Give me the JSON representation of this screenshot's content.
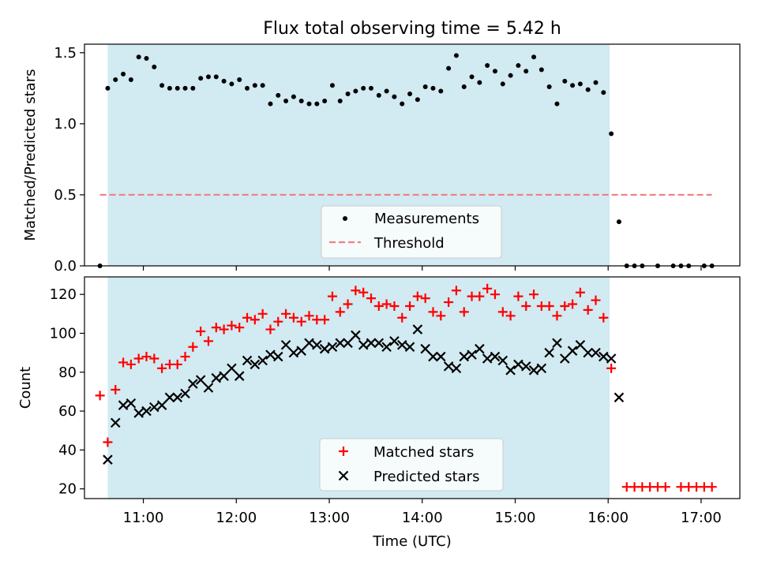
{
  "title": "Flux total observing time = 5.42 h",
  "colors": {
    "shade": "#add8e6",
    "threshold": "#f08080",
    "matched": "#ff0000",
    "predicted": "#000000",
    "measurements": "#000000"
  },
  "chart_data": [
    {
      "type": "scatter",
      "ylabel": "Matched/Predicted stars",
      "xlim": [
        "10:22",
        "17:25"
      ],
      "ylim": [
        0,
        1.56
      ],
      "yticks": [
        "0.0",
        "0.5",
        "1.0",
        "1.5"
      ],
      "x_tick_values": [
        "11:00",
        "12:00",
        "13:00",
        "14:00",
        "15:00",
        "16:00",
        "17:00"
      ],
      "shaded_span": [
        "10:37",
        "16:01"
      ],
      "legend": {
        "position": "lower center",
        "entries": [
          "Measurements",
          "Threshold"
        ]
      },
      "threshold": {
        "name": "Threshold",
        "y": 0.5,
        "x_range": [
          "10:32",
          "17:07"
        ]
      },
      "series": [
        {
          "name": "Measurements",
          "marker": "dot",
          "points": [
            [
              "10:32",
              0.0
            ],
            [
              "10:37",
              1.25
            ],
            [
              "10:42",
              1.31
            ],
            [
              "10:47",
              1.35
            ],
            [
              "10:52",
              1.31
            ],
            [
              "10:57",
              1.47
            ],
            [
              "11:02",
              1.46
            ],
            [
              "11:07",
              1.4
            ],
            [
              "11:12",
              1.27
            ],
            [
              "11:17",
              1.25
            ],
            [
              "11:22",
              1.25
            ],
            [
              "11:27",
              1.25
            ],
            [
              "11:32",
              1.25
            ],
            [
              "11:37",
              1.32
            ],
            [
              "11:42",
              1.33
            ],
            [
              "11:47",
              1.33
            ],
            [
              "11:52",
              1.3
            ],
            [
              "11:57",
              1.28
            ],
            [
              "12:02",
              1.31
            ],
            [
              "12:07",
              1.25
            ],
            [
              "12:12",
              1.27
            ],
            [
              "12:17",
              1.27
            ],
            [
              "12:22",
              1.14
            ],
            [
              "12:27",
              1.2
            ],
            [
              "12:32",
              1.16
            ],
            [
              "12:37",
              1.19
            ],
            [
              "12:42",
              1.16
            ],
            [
              "12:47",
              1.14
            ],
            [
              "12:52",
              1.14
            ],
            [
              "12:57",
              1.16
            ],
            [
              "13:02",
              1.27
            ],
            [
              "13:07",
              1.16
            ],
            [
              "13:12",
              1.21
            ],
            [
              "13:17",
              1.23
            ],
            [
              "13:22",
              1.25
            ],
            [
              "13:27",
              1.25
            ],
            [
              "13:32",
              1.2
            ],
            [
              "13:37",
              1.23
            ],
            [
              "13:42",
              1.19
            ],
            [
              "13:47",
              1.14
            ],
            [
              "13:52",
              1.21
            ],
            [
              "13:57",
              1.17
            ],
            [
              "14:02",
              1.26
            ],
            [
              "14:07",
              1.25
            ],
            [
              "14:12",
              1.23
            ],
            [
              "14:17",
              1.39
            ],
            [
              "14:22",
              1.48
            ],
            [
              "14:27",
              1.26
            ],
            [
              "14:32",
              1.33
            ],
            [
              "14:37",
              1.29
            ],
            [
              "14:42",
              1.41
            ],
            [
              "14:47",
              1.37
            ],
            [
              "14:52",
              1.28
            ],
            [
              "14:57",
              1.34
            ],
            [
              "15:02",
              1.41
            ],
            [
              "15:07",
              1.37
            ],
            [
              "15:12",
              1.47
            ],
            [
              "15:17",
              1.38
            ],
            [
              "15:22",
              1.26
            ],
            [
              "15:27",
              1.14
            ],
            [
              "15:32",
              1.3
            ],
            [
              "15:37",
              1.27
            ],
            [
              "15:42",
              1.28
            ],
            [
              "15:47",
              1.24
            ],
            [
              "15:52",
              1.29
            ],
            [
              "15:57",
              1.22
            ],
            [
              "16:02",
              0.93
            ],
            [
              "16:07",
              0.31
            ],
            [
              "16:12",
              0.0
            ],
            [
              "16:17",
              0.0
            ],
            [
              "16:22",
              0.0
            ],
            [
              "16:32",
              0.0
            ],
            [
              "16:42",
              0.0
            ],
            [
              "16:47",
              0.0
            ],
            [
              "16:52",
              0.0
            ],
            [
              "17:02",
              0.0
            ],
            [
              "17:07",
              0.0
            ]
          ]
        }
      ]
    },
    {
      "type": "scatter",
      "xlabel": "Time (UTC)",
      "ylabel": "Count",
      "xlim": [
        "10:22",
        "17:25"
      ],
      "ylim": [
        15,
        129
      ],
      "yticks": [
        "20",
        "40",
        "60",
        "80",
        "100",
        "120"
      ],
      "xticks": [
        "11:00",
        "12:00",
        "13:00",
        "14:00",
        "15:00",
        "16:00",
        "17:00"
      ],
      "shaded_span": [
        "10:37",
        "16:01"
      ],
      "legend": {
        "position": "lower center",
        "entries": [
          "Matched stars",
          "Predicted stars"
        ]
      },
      "series": [
        {
          "name": "Matched stars",
          "marker": "plus",
          "points": [
            [
              "10:32",
              68
            ],
            [
              "10:37",
              44
            ],
            [
              "10:42",
              71
            ],
            [
              "10:47",
              85
            ],
            [
              "10:52",
              84
            ],
            [
              "10:57",
              87
            ],
            [
              "11:02",
              88
            ],
            [
              "11:07",
              87
            ],
            [
              "11:12",
              82
            ],
            [
              "11:17",
              84
            ],
            [
              "11:22",
              84
            ],
            [
              "11:27",
              88
            ],
            [
              "11:32",
              93
            ],
            [
              "11:37",
              101
            ],
            [
              "11:42",
              96
            ],
            [
              "11:47",
              103
            ],
            [
              "11:52",
              102
            ],
            [
              "11:57",
              104
            ],
            [
              "12:02",
              103
            ],
            [
              "12:07",
              108
            ],
            [
              "12:12",
              107
            ],
            [
              "12:17",
              110
            ],
            [
              "12:22",
              102
            ],
            [
              "12:27",
              106
            ],
            [
              "12:32",
              110
            ],
            [
              "12:37",
              108
            ],
            [
              "12:42",
              106
            ],
            [
              "12:47",
              109
            ],
            [
              "12:52",
              107
            ],
            [
              "12:57",
              107
            ],
            [
              "13:02",
              119
            ],
            [
              "13:07",
              111
            ],
            [
              "13:12",
              115
            ],
            [
              "13:17",
              122
            ],
            [
              "13:22",
              121
            ],
            [
              "13:27",
              118
            ],
            [
              "13:32",
              114
            ],
            [
              "13:37",
              115
            ],
            [
              "13:42",
              114
            ],
            [
              "13:47",
              108
            ],
            [
              "13:52",
              114
            ],
            [
              "13:57",
              119
            ],
            [
              "14:02",
              118
            ],
            [
              "14:07",
              111
            ],
            [
              "14:12",
              109
            ],
            [
              "14:17",
              116
            ],
            [
              "14:22",
              122
            ],
            [
              "14:27",
              111
            ],
            [
              "14:32",
              119
            ],
            [
              "14:37",
              119
            ],
            [
              "14:42",
              123
            ],
            [
              "14:47",
              120
            ],
            [
              "14:52",
              111
            ],
            [
              "14:57",
              109
            ],
            [
              "15:02",
              119
            ],
            [
              "15:07",
              114
            ],
            [
              "15:12",
              120
            ],
            [
              "15:17",
              114
            ],
            [
              "15:22",
              114
            ],
            [
              "15:27",
              109
            ],
            [
              "15:32",
              114
            ],
            [
              "15:37",
              115
            ],
            [
              "15:42",
              121
            ],
            [
              "15:47",
              112
            ],
            [
              "15:52",
              117
            ],
            [
              "15:57",
              108
            ],
            [
              "16:02",
              82
            ],
            [
              "16:12",
              21
            ],
            [
              "16:17",
              21
            ],
            [
              "16:22",
              21
            ],
            [
              "16:27",
              21
            ],
            [
              "16:32",
              21
            ],
            [
              "16:37",
              21
            ],
            [
              "16:47",
              21
            ],
            [
              "16:52",
              21
            ],
            [
              "16:57",
              21
            ],
            [
              "17:02",
              21
            ],
            [
              "17:07",
              21
            ]
          ]
        },
        {
          "name": "Predicted stars",
          "marker": "x",
          "points": [
            [
              "10:37",
              35
            ],
            [
              "10:42",
              54
            ],
            [
              "10:47",
              63
            ],
            [
              "10:52",
              64
            ],
            [
              "10:57",
              59
            ],
            [
              "11:02",
              60
            ],
            [
              "11:07",
              62
            ],
            [
              "11:12",
              63
            ],
            [
              "11:17",
              67
            ],
            [
              "11:22",
              67
            ],
            [
              "11:27",
              69
            ],
            [
              "11:32",
              74
            ],
            [
              "11:37",
              76
            ],
            [
              "11:42",
              72
            ],
            [
              "11:47",
              77
            ],
            [
              "11:52",
              78
            ],
            [
              "11:57",
              82
            ],
            [
              "12:02",
              78
            ],
            [
              "12:07",
              86
            ],
            [
              "12:12",
              84
            ],
            [
              "12:17",
              86
            ],
            [
              "12:22",
              89
            ],
            [
              "12:27",
              88
            ],
            [
              "12:32",
              94
            ],
            [
              "12:37",
              90
            ],
            [
              "12:42",
              91
            ],
            [
              "12:47",
              95
            ],
            [
              "12:52",
              94
            ],
            [
              "12:57",
              92
            ],
            [
              "13:02",
              93
            ],
            [
              "13:07",
              95
            ],
            [
              "13:12",
              95
            ],
            [
              "13:17",
              99
            ],
            [
              "13:22",
              94
            ],
            [
              "13:27",
              95
            ],
            [
              "13:32",
              95
            ],
            [
              "13:37",
              93
            ],
            [
              "13:42",
              96
            ],
            [
              "13:47",
              94
            ],
            [
              "13:52",
              93
            ],
            [
              "13:57",
              102
            ],
            [
              "14:02",
              92
            ],
            [
              "14:07",
              88
            ],
            [
              "14:12",
              88
            ],
            [
              "14:17",
              83
            ],
            [
              "14:22",
              82
            ],
            [
              "14:27",
              88
            ],
            [
              "14:32",
              89
            ],
            [
              "14:37",
              92
            ],
            [
              "14:42",
              87
            ],
            [
              "14:47",
              88
            ],
            [
              "14:52",
              86
            ],
            [
              "14:57",
              81
            ],
            [
              "15:02",
              84
            ],
            [
              "15:07",
              83
            ],
            [
              "15:12",
              81
            ],
            [
              "15:17",
              82
            ],
            [
              "15:22",
              90
            ],
            [
              "15:27",
              95
            ],
            [
              "15:32",
              87
            ],
            [
              "15:37",
              91
            ],
            [
              "15:42",
              94
            ],
            [
              "15:47",
              90
            ],
            [
              "15:52",
              90
            ],
            [
              "15:57",
              88
            ],
            [
              "16:02",
              87
            ],
            [
              "16:07",
              67
            ]
          ]
        }
      ]
    }
  ]
}
